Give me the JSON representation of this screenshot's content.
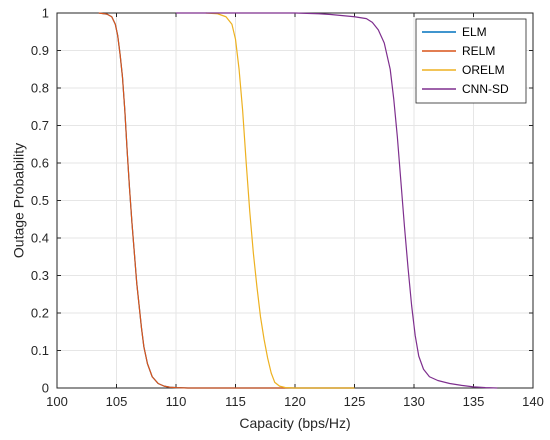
{
  "chart_data": {
    "type": "line",
    "title": "",
    "xlabel": "Capacity (bps/Hz)",
    "ylabel": "Outage Probability",
    "xlim": [
      100,
      140
    ],
    "ylim": [
      0,
      1
    ],
    "xticks": [
      100,
      105,
      110,
      115,
      120,
      125,
      130,
      135,
      140
    ],
    "yticks": [
      0,
      0.1,
      0.2,
      0.3,
      0.4,
      0.5,
      0.6,
      0.7,
      0.8,
      0.9,
      1
    ],
    "xtick_labels": [
      "100",
      "105",
      "110",
      "115",
      "120",
      "125",
      "130",
      "135",
      "140"
    ],
    "ytick_labels": [
      "0",
      "0.1",
      "0.2",
      "0.3",
      "0.4",
      "0.5",
      "0.6",
      "0.7",
      "0.8",
      "0.9",
      "1"
    ],
    "grid": true,
    "legend_position": "top-right",
    "series": [
      {
        "name": "ELM",
        "color": "#0072BD",
        "x": [
          103.5,
          104.2,
          104.6,
          104.9,
          105.1,
          105.3,
          105.5,
          105.7,
          105.9,
          106.1,
          106.3,
          106.5,
          106.7,
          106.9,
          107.1,
          107.3,
          107.6,
          108.0,
          108.5,
          109.0,
          109.5,
          110.0,
          111.0,
          125.0
        ],
        "y": [
          1.0,
          0.997,
          0.99,
          0.97,
          0.94,
          0.89,
          0.83,
          0.74,
          0.63,
          0.53,
          0.44,
          0.36,
          0.28,
          0.22,
          0.16,
          0.11,
          0.065,
          0.03,
          0.012,
          0.005,
          0.002,
          0.001,
          0.0,
          0.0
        ]
      },
      {
        "name": "RELM",
        "color": "#D95319",
        "x": [
          103.5,
          104.2,
          104.6,
          104.9,
          105.1,
          105.3,
          105.5,
          105.7,
          105.9,
          106.1,
          106.3,
          106.5,
          106.7,
          106.9,
          107.1,
          107.3,
          107.6,
          108.0,
          108.5,
          109.0,
          109.5,
          110.0,
          111.0,
          125.0
        ],
        "y": [
          1.0,
          0.997,
          0.99,
          0.97,
          0.94,
          0.89,
          0.83,
          0.74,
          0.63,
          0.53,
          0.44,
          0.36,
          0.28,
          0.22,
          0.16,
          0.11,
          0.065,
          0.03,
          0.012,
          0.005,
          0.002,
          0.001,
          0.0,
          0.0
        ]
      },
      {
        "name": "ORELM",
        "color": "#EDB120",
        "x": [
          112.5,
          113.5,
          114.2,
          114.7,
          115.0,
          115.3,
          115.6,
          115.9,
          116.2,
          116.5,
          116.8,
          117.1,
          117.4,
          117.7,
          118.0,
          118.3,
          118.7,
          119.2,
          120.0,
          125.0
        ],
        "y": [
          1.0,
          0.998,
          0.99,
          0.97,
          0.93,
          0.85,
          0.74,
          0.6,
          0.47,
          0.36,
          0.27,
          0.19,
          0.13,
          0.08,
          0.04,
          0.015,
          0.005,
          0.001,
          0.0,
          0.0
        ]
      },
      {
        "name": "CNN-SD",
        "color": "#7E2F8E",
        "x": [
          110.0,
          115.0,
          120.0,
          122.0,
          123.0,
          124.0,
          125.0,
          126.0,
          126.5,
          127.0,
          127.5,
          128.0,
          128.3,
          128.6,
          128.9,
          129.2,
          129.5,
          129.8,
          130.1,
          130.4,
          130.8,
          131.3,
          132.0,
          133.0,
          134.0,
          135.0,
          136.0,
          137.0
        ],
        "y": [
          1.0,
          1.0,
          1.0,
          0.998,
          0.996,
          0.993,
          0.99,
          0.985,
          0.975,
          0.955,
          0.92,
          0.85,
          0.77,
          0.67,
          0.55,
          0.43,
          0.32,
          0.22,
          0.14,
          0.085,
          0.05,
          0.03,
          0.02,
          0.012,
          0.007,
          0.003,
          0.001,
          0.0
        ]
      }
    ]
  }
}
